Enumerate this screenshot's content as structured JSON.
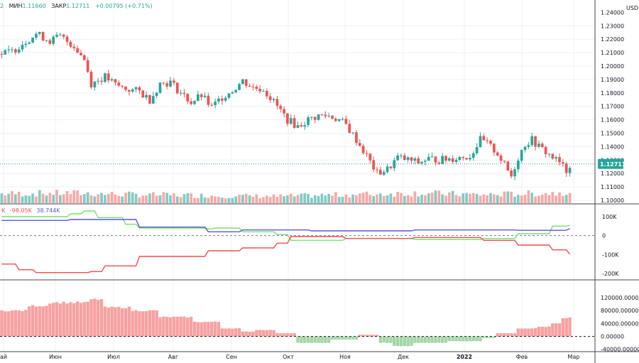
{
  "header": {
    "partial_value": "2",
    "low_label": "МИН",
    "low_value": "1.11660",
    "close_label": "ЗАКР",
    "close_value": "1.12711",
    "change": "+0.00795 (+0.71%)"
  },
  "currency_label": "USD",
  "price_tag": "1.12711",
  "colors": {
    "up": "#26a69a",
    "down": "#ef5350",
    "vol_up": "#80cbc4",
    "vol_down": "#f7a9a7",
    "green_line": "#76e26c",
    "blue_line": "#5b57d8",
    "red_line": "#ef4f4f",
    "grid": "#eef0f3",
    "axis_text": "#131722",
    "price_tag_bg": "#26a69a"
  },
  "cot_legend": {
    "partial": "K",
    "value1": "-98.05K",
    "value2": "38.744K"
  },
  "chart_data": [
    {
      "type": "candlestick",
      "title": "",
      "yticks": [
        "1.24000",
        "1.23000",
        "1.22000",
        "1.21000",
        "1.20000",
        "1.19000",
        "1.18000",
        "1.17000",
        "1.16000",
        "1.15000",
        "1.14000",
        "1.13000",
        "1.12000",
        "1.11000",
        "1.10000"
      ],
      "ylim": [
        1.1,
        1.245
      ],
      "xticks": [
        "ай",
        "Июн",
        "Июл",
        "Авг",
        "Сен",
        "Окт",
        "Ноя",
        "Дек",
        "2022",
        "Фев",
        "Мар"
      ],
      "close_path": [
        [
          0,
          1.209
        ],
        [
          3,
          1.211
        ],
        [
          6,
          1.217
        ],
        [
          10,
          1.224
        ],
        [
          14,
          1.219
        ],
        [
          17,
          1.222
        ],
        [
          21,
          1.215
        ],
        [
          24,
          1.205
        ],
        [
          26,
          1.187
        ],
        [
          30,
          1.192
        ],
        [
          33,
          1.186
        ],
        [
          36,
          1.183
        ],
        [
          40,
          1.181
        ],
        [
          43,
          1.175
        ],
        [
          46,
          1.187
        ],
        [
          49,
          1.188
        ],
        [
          52,
          1.18
        ],
        [
          55,
          1.173
        ],
        [
          58,
          1.178
        ],
        [
          61,
          1.169
        ],
        [
          64,
          1.177
        ],
        [
          67,
          1.182
        ],
        [
          70,
          1.189
        ],
        [
          73,
          1.184
        ],
        [
          76,
          1.183
        ],
        [
          80,
          1.17
        ],
        [
          83,
          1.16
        ],
        [
          86,
          1.155
        ],
        [
          89,
          1.16
        ],
        [
          92,
          1.163
        ],
        [
          95,
          1.163
        ],
        [
          98,
          1.16
        ],
        [
          100,
          1.156
        ],
        [
          103,
          1.145
        ],
        [
          106,
          1.133
        ],
        [
          109,
          1.12
        ],
        [
          112,
          1.123
        ],
        [
          115,
          1.132
        ],
        [
          118,
          1.13
        ],
        [
          121,
          1.128
        ],
        [
          124,
          1.131
        ],
        [
          127,
          1.13
        ],
        [
          130,
          1.131
        ],
        [
          133,
          1.132
        ],
        [
          136,
          1.133
        ],
        [
          139,
          1.145
        ],
        [
          141,
          1.142
        ],
        [
          144,
          1.135
        ],
        [
          146,
          1.126
        ],
        [
          148,
          1.118
        ],
        [
          150,
          1.132
        ],
        [
          152,
          1.142
        ],
        [
          154,
          1.145
        ],
        [
          156,
          1.14
        ],
        [
          158,
          1.136
        ],
        [
          160,
          1.132
        ],
        [
          162,
          1.128
        ],
        [
          164,
          1.122
        ],
        [
          165,
          1.127
        ]
      ],
      "volume_path": [
        [
          0,
          0.55
        ],
        [
          20,
          0.6
        ],
        [
          40,
          0.5
        ],
        [
          60,
          0.45
        ],
        [
          80,
          0.4
        ],
        [
          100,
          0.5
        ],
        [
          120,
          0.6
        ],
        [
          140,
          0.5
        ],
        [
          160,
          0.6
        ],
        [
          165,
          0.7
        ]
      ]
    },
    {
      "type": "line",
      "title": "",
      "yticks": [
        "100K",
        "0",
        "-100K",
        "-200K"
      ],
      "ylim": [
        -230,
        130
      ],
      "series": [
        {
          "name": "",
          "color": "#76e26c",
          "values": [
            [
              0,
              100
            ],
            [
              20,
              115
            ],
            [
              24,
              130
            ],
            [
              28,
              95
            ],
            [
              36,
              60
            ],
            [
              40,
              40
            ],
            [
              60,
              35
            ],
            [
              62,
              40
            ],
            [
              70,
              20
            ],
            [
              80,
              5
            ],
            [
              84,
              -25
            ],
            [
              100,
              -15
            ],
            [
              120,
              -20
            ],
            [
              140,
              -15
            ],
            [
              150,
              10
            ],
            [
              160,
              50
            ],
            [
              165,
              55
            ]
          ]
        },
        {
          "name": "",
          "color": "#5b57d8",
          "values": [
            [
              0,
              80
            ],
            [
              20,
              85
            ],
            [
              40,
              45
            ],
            [
              60,
              20
            ],
            [
              70,
              30
            ],
            [
              90,
              25
            ],
            [
              120,
              30
            ],
            [
              150,
              28
            ],
            [
              165,
              38
            ]
          ]
        },
        {
          "name": "",
          "color": "#ef4f4f",
          "values": [
            [
              0,
              -150
            ],
            [
              5,
              -180
            ],
            [
              10,
              -195
            ],
            [
              26,
              -190
            ],
            [
              30,
              -160
            ],
            [
              40,
              -110
            ],
            [
              60,
              -80
            ],
            [
              70,
              -65
            ],
            [
              80,
              -40
            ],
            [
              84,
              -5
            ],
            [
              100,
              -15
            ],
            [
              120,
              -10
            ],
            [
              140,
              -25
            ],
            [
              150,
              -50
            ],
            [
              160,
              -75
            ],
            [
              165,
              -98
            ]
          ]
        }
      ]
    },
    {
      "type": "bar",
      "title": "",
      "yticks": [
        "120000.00000",
        "80000.00000",
        "40000.00000",
        "0.00000",
        "-40000.00000"
      ],
      "ylim": [
        -45000,
        140000
      ],
      "segments": [
        [
          0,
          80000
        ],
        [
          8,
          95000
        ],
        [
          14,
          105000
        ],
        [
          26,
          115000
        ],
        [
          30,
          90000
        ],
        [
          38,
          80000
        ],
        [
          46,
          60000
        ],
        [
          56,
          45000
        ],
        [
          64,
          25000
        ],
        [
          70,
          15000
        ],
        [
          74,
          20000
        ],
        [
          80,
          10000
        ],
        [
          86,
          -20000
        ],
        [
          96,
          -10000
        ],
        [
          104,
          5000
        ],
        [
          110,
          -20000
        ],
        [
          114,
          -30000
        ],
        [
          120,
          -20000
        ],
        [
          130,
          -15000
        ],
        [
          140,
          -5000
        ],
        [
          144,
          10000
        ],
        [
          150,
          25000
        ],
        [
          156,
          30000
        ],
        [
          160,
          40000
        ],
        [
          163,
          55000
        ],
        [
          165,
          60000
        ]
      ]
    }
  ]
}
